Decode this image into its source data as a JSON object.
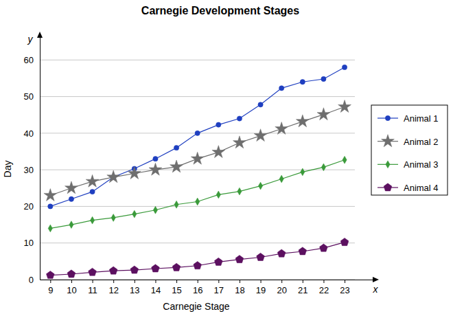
{
  "chart_data": {
    "type": "line",
    "title": "Carnegie Development Stages",
    "x_label": "Carnegie Stage",
    "y_label": "Day",
    "axis_letters": {
      "x": "x",
      "y": "y"
    },
    "x": [
      9,
      10,
      11,
      12,
      13,
      14,
      15,
      16,
      17,
      18,
      19,
      20,
      21,
      22,
      23
    ],
    "xlim": [
      8.5,
      24.5
    ],
    "xticks": [
      9,
      10,
      11,
      12,
      13,
      14,
      15,
      16,
      17,
      18,
      19,
      20,
      21,
      22,
      23
    ],
    "ylim": [
      0,
      67
    ],
    "yticks": [
      0,
      10,
      20,
      30,
      40,
      50,
      60
    ],
    "grid": true,
    "legend": "right",
    "series": [
      {
        "name": "Animal 1",
        "color": "#1f3fc0",
        "marker": "circle",
        "line_style": "solid",
        "values": [
          20,
          22,
          24,
          28,
          30.3,
          33,
          36,
          40,
          42.3,
          44,
          47.8,
          52.3,
          54,
          54.8,
          58
        ]
      },
      {
        "name": "Animal 2",
        "color": "#6e6e6e",
        "marker": "star",
        "line_style": "solid",
        "values": [
          23,
          25,
          26.8,
          28,
          29,
          30,
          30.8,
          33,
          34.8,
          37.4,
          39.3,
          41.2,
          43.2,
          45.1,
          47.2
        ]
      },
      {
        "name": "Animal 3",
        "color": "#3a9a3a",
        "marker": "diamond",
        "line_style": "solid",
        "values": [
          14,
          15,
          16.2,
          16.9,
          17.9,
          19,
          20.5,
          21.3,
          23.2,
          24.1,
          25.6,
          27.5,
          29.4,
          30.7,
          32.7
        ]
      },
      {
        "name": "Animal 4",
        "color": "#5c1060",
        "marker": "pentagon",
        "line_style": "solid",
        "values": [
          1.2,
          1.5,
          2,
          2.4,
          2.6,
          3,
          3.3,
          3.8,
          4.8,
          5.5,
          6.1,
          7.1,
          7.7,
          8.6,
          10.2
        ]
      }
    ]
  }
}
